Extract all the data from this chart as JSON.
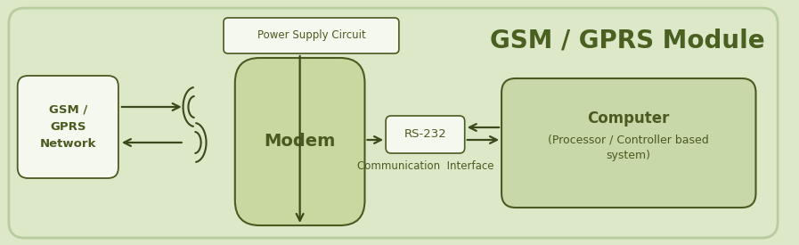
{
  "bg_color": "#dce8c8",
  "outer_edge_color": "#b8cca0",
  "box_fill_light": "#f5f8ee",
  "box_fill_green": "#c8d8a8",
  "box_fill_modem": "#c8d8a0",
  "text_color_dark": "#4a5a20",
  "text_color_title": "#4a6020",
  "arrow_color": "#3a4a1a",
  "title": "GSM / GPRS Module",
  "title_fontsize": 20,
  "gsm_network_label": "GSM /\nGPRS\nNetwork",
  "modem_label": "Modem",
  "rs232_label": "RS-232",
  "computer_label": "Computer",
  "computer_sublabel": "(Processor / Controller based\nsystem)",
  "power_label": "Power Supply Circuit",
  "comm_label": "Communication  Interface",
  "figsize": [
    8.97,
    2.75
  ],
  "dpi": 100
}
